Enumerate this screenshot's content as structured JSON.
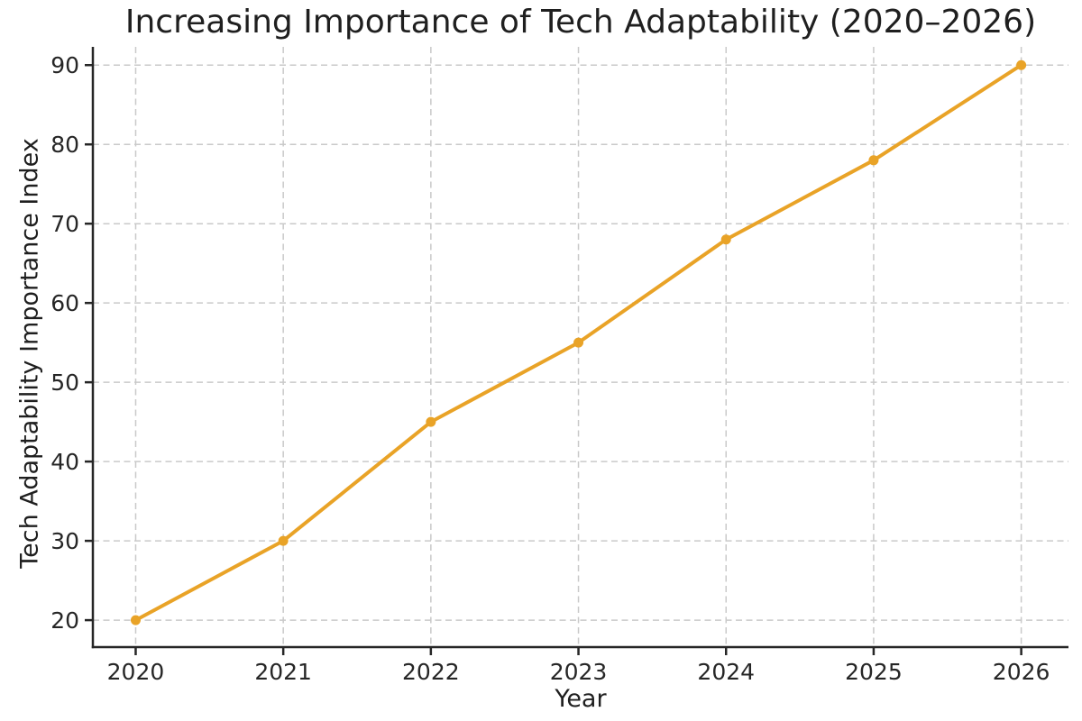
{
  "figure": {
    "background": "#ffffff"
  },
  "chart_data": {
    "type": "line",
    "title": "Increasing Importance of Tech Adaptability (2020–2026)",
    "xlabel": "Year",
    "ylabel": "Tech Adaptability Importance Index",
    "x": [
      2020,
      2021,
      2022,
      2023,
      2024,
      2025,
      2026
    ],
    "series": [
      {
        "name": "Tech Adaptability Importance Index",
        "values": [
          20,
          30,
          45,
          55,
          68,
          78,
          90
        ],
        "color": "#E9A327",
        "marker": "circle"
      }
    ],
    "xticks": [
      2020,
      2021,
      2022,
      2023,
      2024,
      2025,
      2026
    ],
    "yticks": [
      20,
      30,
      40,
      50,
      60,
      70,
      80,
      90
    ],
    "xlim": [
      2019.71,
      2026.32
    ],
    "ylim": [
      16.6,
      92.3
    ],
    "grid": true,
    "grid_style": "dashed",
    "legend": "none",
    "colors": {
      "line": "#E9A327",
      "grid": "#c9c9c9",
      "spine": "#262626",
      "text": "#1f1f1f"
    }
  }
}
